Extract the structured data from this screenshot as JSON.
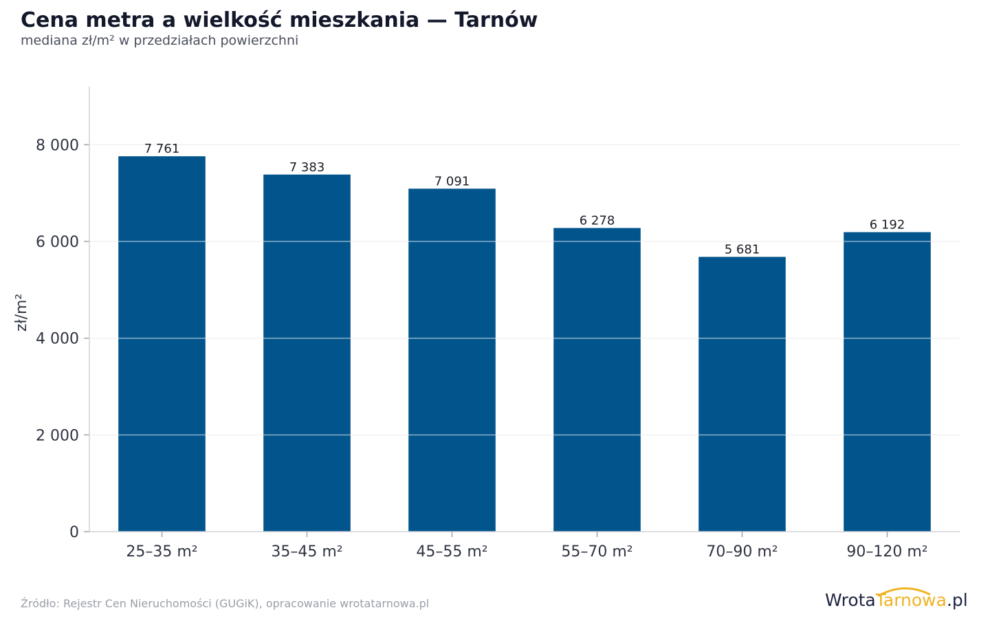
{
  "header": {
    "title": "Cena metra a wielkość mieszkania — Tarnów",
    "subtitle": "mediana zł/m² w przedziałach powierzchni"
  },
  "footer": {
    "source": "Źródło: Rejestr Cen Nieruchomości (GUGiK), opracowanie wrotatarnowa.pl"
  },
  "logo": {
    "part1": "Wrota",
    "part2": "Tarnowa",
    "part3": ".pl"
  },
  "colors": {
    "bar": "#02548c",
    "grid": "#e3e5e9",
    "axis": "#cfd2d8",
    "text": "#2f3442",
    "accent": "#f0b323"
  },
  "chart_data": {
    "type": "bar",
    "categories": [
      "25–35 m²",
      "35–45 m²",
      "45–55 m²",
      "55–70 m²",
      "70–90 m²",
      "90–120 m²"
    ],
    "values": [
      7761,
      7383,
      7091,
      6278,
      5681,
      6192
    ],
    "value_labels": [
      "7 761",
      "7 383",
      "7 091",
      "6 278",
      "5 681",
      "6 192"
    ],
    "ylabel": "zł/m²",
    "xlabel": "",
    "ylim": [
      0,
      9200
    ],
    "yticks": [
      0,
      2000,
      4000,
      6000,
      8000
    ],
    "ytick_labels": [
      "0",
      "2 000",
      "4 000",
      "6 000",
      "8 000"
    ],
    "grid": true
  }
}
